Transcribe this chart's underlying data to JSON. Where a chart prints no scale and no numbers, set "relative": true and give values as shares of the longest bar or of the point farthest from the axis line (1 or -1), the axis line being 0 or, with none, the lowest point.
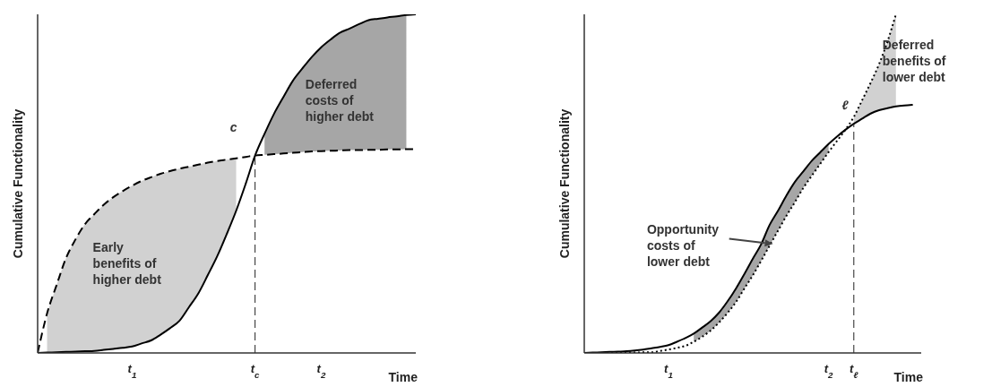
{
  "chart_data": [
    {
      "type": "line",
      "relative": true,
      "xlabel": "Time",
      "ylabel": "Cumulative Functionality",
      "marker": "none",
      "categories": [
        null,
        null,
        null,
        null,
        null,
        null,
        null,
        null,
        null,
        null,
        "t$_{1}$",
        null,
        null,
        null,
        null,
        null,
        null,
        null,
        null,
        null,
        null,
        null,
        null,
        "t$_{c}$",
        null,
        null,
        null,
        null,
        null,
        null,
        "t$_{2}$",
        null,
        null,
        null,
        null,
        null,
        null,
        null,
        null,
        null,
        null
      ],
      "series": [
        {
          "color": "#000000",
          "line_style": "solid",
          "values": [
            0,
            0.001,
            0.002,
            0.003,
            0.004,
            0.005,
            0.006,
            0.009,
            0.012,
            0.015,
            0.019,
            0.028,
            0.037,
            0.054,
            0.073,
            0.095,
            0.135,
            0.176,
            0.23,
            0.286,
            0.351,
            0.42,
            0.499,
            0.583,
            0.647,
            0.706,
            0.756,
            0.804,
            0.84,
            0.874,
            0.903,
            0.926,
            0.946,
            0.958,
            0.971,
            0.983,
            0.987,
            0.991,
            0.994,
            0.998,
            1.0
          ],
          "lower": [
            null,
            null,
            null,
            null,
            null,
            null,
            null,
            null,
            null,
            null,
            null,
            null,
            null,
            null,
            null,
            null,
            null,
            null,
            null,
            null,
            null,
            null,
            null,
            null,
            0.585,
            0.587,
            0.589,
            0.591,
            0.593,
            0.595,
            0.596,
            0.597,
            0.598,
            0.599,
            0.599,
            0.6,
            0.6,
            0.601,
            0.601,
            0.602,
            null
          ],
          "upper": [
            null,
            null,
            null,
            null,
            null,
            null,
            null,
            null,
            null,
            null,
            null,
            null,
            null,
            null,
            null,
            null,
            null,
            null,
            null,
            null,
            null,
            null,
            null,
            null,
            0.647,
            0.706,
            0.756,
            0.804,
            0.84,
            0.874,
            0.903,
            0.926,
            0.946,
            0.958,
            0.971,
            0.983,
            0.987,
            0.991,
            0.994,
            0.998,
            null
          ]
        },
        {
          "color": "#000000",
          "line_style": "dashed",
          "values": [
            0,
            0.117,
            0.2,
            0.28,
            0.335,
            0.38,
            0.41,
            0.438,
            0.46,
            0.478,
            0.494,
            0.508,
            0.519,
            0.529,
            0.537,
            0.544,
            0.55,
            0.556,
            0.562,
            0.567,
            0.571,
            0.575,
            0.579,
            0.583,
            0.585,
            0.587,
            0.589,
            0.591,
            0.593,
            0.595,
            0.596,
            0.597,
            0.598,
            0.599,
            0.599,
            0.6,
            0.6,
            0.601,
            0.601,
            0.602,
            0.602
          ],
          "lower": [
            null,
            0.001,
            0.002,
            0.003,
            0.004,
            0.005,
            0.006,
            0.009,
            0.012,
            0.015,
            0.019,
            0.028,
            0.037,
            0.054,
            0.073,
            0.095,
            0.135,
            0.176,
            0.23,
            0.286,
            0.351,
            0.42,
            null,
            null,
            null,
            null,
            null,
            null,
            null,
            null,
            null,
            null,
            null,
            null,
            null,
            null,
            null,
            null,
            null,
            null,
            null
          ],
          "upper": [
            null,
            0.117,
            0.2,
            0.28,
            0.335,
            0.38,
            0.41,
            0.438,
            0.46,
            0.478,
            0.494,
            0.508,
            0.519,
            0.529,
            0.537,
            0.544,
            0.55,
            0.556,
            0.562,
            0.567,
            0.571,
            0.575,
            null,
            null,
            null,
            null,
            null,
            null,
            null,
            null,
            null,
            null,
            null,
            null,
            null,
            null,
            null,
            null,
            null,
            null,
            null
          ]
        }
      ],
      "ref_lines": [
        {
          "axis": "x",
          "value": "t$_{c}$",
          "line_style": "dashed"
        }
      ],
      "annotations": [
        "Early\nbenefits of\nhigher debt",
        "Deferred\ncosts of\nhigher debt",
        "c"
      ]
    },
    {
      "type": "line",
      "relative": true,
      "xlabel": "Time",
      "ylabel": "Cumulative Functionality",
      "marker": "none",
      "categories": [
        null,
        null,
        null,
        null,
        null,
        null,
        null,
        null,
        null,
        null,
        "t$_{1}$",
        null,
        null,
        null,
        null,
        null,
        null,
        null,
        null,
        null,
        null,
        null,
        null,
        null,
        null,
        null,
        null,
        null,
        null,
        "t$_{2}$",
        null,
        null,
        "t$_{ℓ}$",
        null,
        null,
        null,
        null,
        null,
        null,
        null,
        null
      ],
      "series": [
        {
          "color": "#000000",
          "line_style": "solid",
          "values": [
            0,
            0.001,
            0.002,
            0.003,
            0.004,
            0.005,
            0.007,
            0.01,
            0.014,
            0.018,
            0.023,
            0.033,
            0.044,
            0.057,
            0.075,
            0.094,
            0.119,
            0.152,
            0.19,
            0.233,
            0.278,
            0.321,
            0.378,
            0.42,
            0.465,
            0.505,
            0.536,
            0.567,
            0.592,
            0.617,
            0.639,
            0.659,
            0.677,
            0.692,
            0.707,
            0.717,
            0.723,
            0.728,
            0.731,
            0.733,
            null
          ],
          "lower": [
            null,
            null,
            null,
            null,
            null,
            null,
            null,
            null,
            null,
            null,
            null,
            null,
            null,
            0.033,
            0.048,
            0.066,
            0.09,
            0.118,
            0.15,
            0.19,
            0.229,
            0.272,
            0.317,
            0.361,
            0.405,
            0.445,
            0.487,
            0.523,
            0.558,
            0.593,
            null,
            null,
            null,
            null,
            null,
            null,
            null,
            null,
            null,
            null,
            null
          ],
          "upper": [
            null,
            null,
            null,
            null,
            null,
            null,
            null,
            null,
            null,
            null,
            null,
            null,
            null,
            0.057,
            0.075,
            0.094,
            0.119,
            0.152,
            0.19,
            0.233,
            0.278,
            0.321,
            0.378,
            0.42,
            0.465,
            0.505,
            0.536,
            0.567,
            0.592,
            0.617,
            null,
            null,
            null,
            null,
            null,
            null,
            null,
            null,
            null,
            null,
            null
          ]
        },
        {
          "color": "#000000",
          "line_style": "dotted",
          "values": [
            0,
            0,
            0,
            0.001,
            0.001,
            0.001,
            0.001,
            0.002,
            0.002,
            0.006,
            0.01,
            0.015,
            0.021,
            0.033,
            0.048,
            0.066,
            0.09,
            0.118,
            0.15,
            0.19,
            0.229,
            0.272,
            0.317,
            0.361,
            0.405,
            0.445,
            0.487,
            0.523,
            0.558,
            0.593,
            0.626,
            0.659,
            0.697,
            0.747,
            0.798,
            0.853,
            0.92,
            1.0,
            null,
            null,
            null
          ],
          "lower": [
            null,
            null,
            null,
            null,
            null,
            null,
            null,
            null,
            null,
            null,
            null,
            null,
            null,
            null,
            null,
            null,
            null,
            null,
            null,
            null,
            null,
            null,
            null,
            null,
            null,
            null,
            null,
            null,
            null,
            null,
            null,
            null,
            0.677,
            0.692,
            0.707,
            0.717,
            0.723,
            0.728,
            null,
            null,
            null
          ],
          "upper": [
            null,
            null,
            null,
            null,
            null,
            null,
            null,
            null,
            null,
            null,
            null,
            null,
            null,
            null,
            null,
            null,
            null,
            null,
            null,
            null,
            null,
            null,
            null,
            null,
            null,
            null,
            null,
            null,
            null,
            null,
            null,
            null,
            0.697,
            0.747,
            0.798,
            0.853,
            0.92,
            1.0,
            null,
            null,
            null
          ]
        }
      ],
      "ref_lines": [
        {
          "axis": "x",
          "value": "t$_{ℓ}$",
          "line_style": "dashed"
        }
      ],
      "annotations": [
        "Opportunity\ncosts of\nlower debt",
        "Deferred\nbenefits of\nlower debt",
        "ℓ"
      ]
    }
  ]
}
